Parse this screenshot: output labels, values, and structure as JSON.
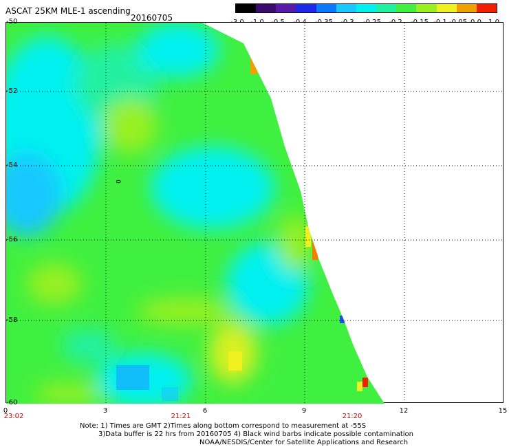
{
  "header": {
    "title": "ASCAT 25KM MLE-1 ascending",
    "date": "20160705"
  },
  "colorbar": {
    "labels": [
      "-3.0",
      "-1.0",
      "-0.5",
      "-0.4",
      "-0.35",
      "-0.3",
      "-0.25",
      "-0.2",
      "-0.15",
      "-0.1",
      "-0.05",
      "0.0",
      "1.0"
    ],
    "colors": [
      "#000000",
      "#3a0a6e",
      "#5a1aa8",
      "#1e28e6",
      "#0a78ff",
      "#18c8ff",
      "#00f0f0",
      "#20f0a0",
      "#40f040",
      "#98f020",
      "#f0f020",
      "#f0a000",
      "#f02000"
    ]
  },
  "axes": {
    "y_labels": [
      "-50",
      "-52",
      "-54",
      "-56",
      "-58",
      "-60"
    ],
    "x_labels": [
      "0",
      "3",
      "6",
      "9",
      "12",
      "15"
    ],
    "time_labels": [
      "23:02",
      "21:21",
      "21:20"
    ]
  },
  "map": {
    "barb_label": "0"
  },
  "notes": {
    "line1": "Note: 1) Times are GMT 2)Times along bottom correspond to measurement at -55S",
    "line2": "3)Data buffer is 22 hrs from 20160705 4) Black wind barbs indicate possible contamination",
    "line3": "NOAA/NESDIS/Center for Satellite Applications and Research"
  }
}
